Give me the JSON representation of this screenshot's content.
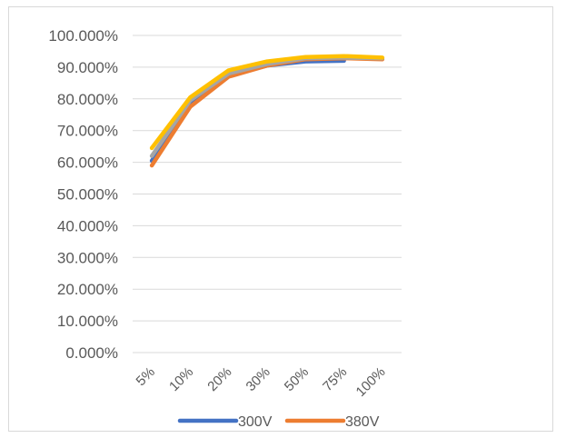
{
  "chart_data": {
    "type": "line",
    "categories": [
      "5%",
      "10%",
      "20%",
      "30%",
      "50%",
      "75%",
      "100%"
    ],
    "yticks": [
      "0.000%",
      "10.000%",
      "20.000%",
      "30.000%",
      "40.000%",
      "50.000%",
      "60.000%",
      "70.000%",
      "80.000%",
      "90.000%",
      "100.000%"
    ],
    "ylim": [
      0,
      100
    ],
    "grid": true,
    "legend": "bottom",
    "series": [
      {
        "name": "300V",
        "color": "#4472c4",
        "values": [
          60.5,
          78.5,
          87.5,
          90.5,
          91.8,
          92.0,
          null
        ]
      },
      {
        "name": "380V",
        "color": "#ed7d31",
        "values": [
          59.0,
          77.5,
          87.0,
          90.5,
          92.5,
          92.8,
          92.5
        ]
      },
      {
        "name": "",
        "color": "#a5a5a5",
        "values": [
          62.0,
          79.5,
          88.0,
          91.0,
          92.8,
          93.0,
          92.8
        ]
      },
      {
        "name": "",
        "color": "#ffc000",
        "values": [
          64.5,
          80.5,
          89.0,
          91.8,
          93.2,
          93.5,
          93.0
        ]
      }
    ]
  }
}
